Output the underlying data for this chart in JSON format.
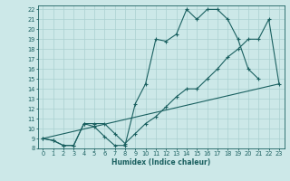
{
  "xlabel": "Humidex (Indice chaleur)",
  "ylabel": "",
  "xlim": [
    -0.5,
    23.5
  ],
  "ylim": [
    8,
    22.4
  ],
  "xticks": [
    0,
    1,
    2,
    3,
    4,
    5,
    6,
    7,
    8,
    9,
    10,
    11,
    12,
    13,
    14,
    15,
    16,
    17,
    18,
    19,
    20,
    21,
    22,
    23
  ],
  "yticks": [
    8,
    9,
    10,
    11,
    12,
    13,
    14,
    15,
    16,
    17,
    18,
    19,
    20,
    21,
    22
  ],
  "bg_color": "#cce8e8",
  "grid_color": "#aad0d0",
  "line_color": "#1a6060",
  "line1_x": [
    0,
    1,
    2,
    3,
    4,
    5,
    6,
    7,
    8,
    9,
    10,
    11,
    12,
    13,
    14,
    15,
    16,
    17,
    18,
    19,
    20,
    21
  ],
  "line1_y": [
    9,
    8.8,
    8.3,
    8.3,
    10.5,
    10.2,
    9.2,
    8.3,
    8.3,
    12.5,
    14.5,
    19.0,
    18.8,
    19.5,
    22.0,
    21.0,
    22.0,
    22.0,
    21.0,
    19.0,
    16.0,
    15.0
  ],
  "line2_x": [
    0,
    1,
    2,
    3,
    4,
    5,
    6,
    7,
    8,
    9,
    10,
    11,
    12,
    13,
    14,
    15,
    16,
    17,
    18,
    19,
    20,
    21,
    22,
    23
  ],
  "line2_y": [
    9,
    8.8,
    8.3,
    8.3,
    10.5,
    10.5,
    10.5,
    9.5,
    8.5,
    9.5,
    10.5,
    11.2,
    12.2,
    13.2,
    14.0,
    14.0,
    15.0,
    16.0,
    17.2,
    18.0,
    19.0,
    19.0,
    21.0,
    14.5
  ],
  "line3_x": [
    0,
    23
  ],
  "line3_y": [
    9,
    14.5
  ]
}
